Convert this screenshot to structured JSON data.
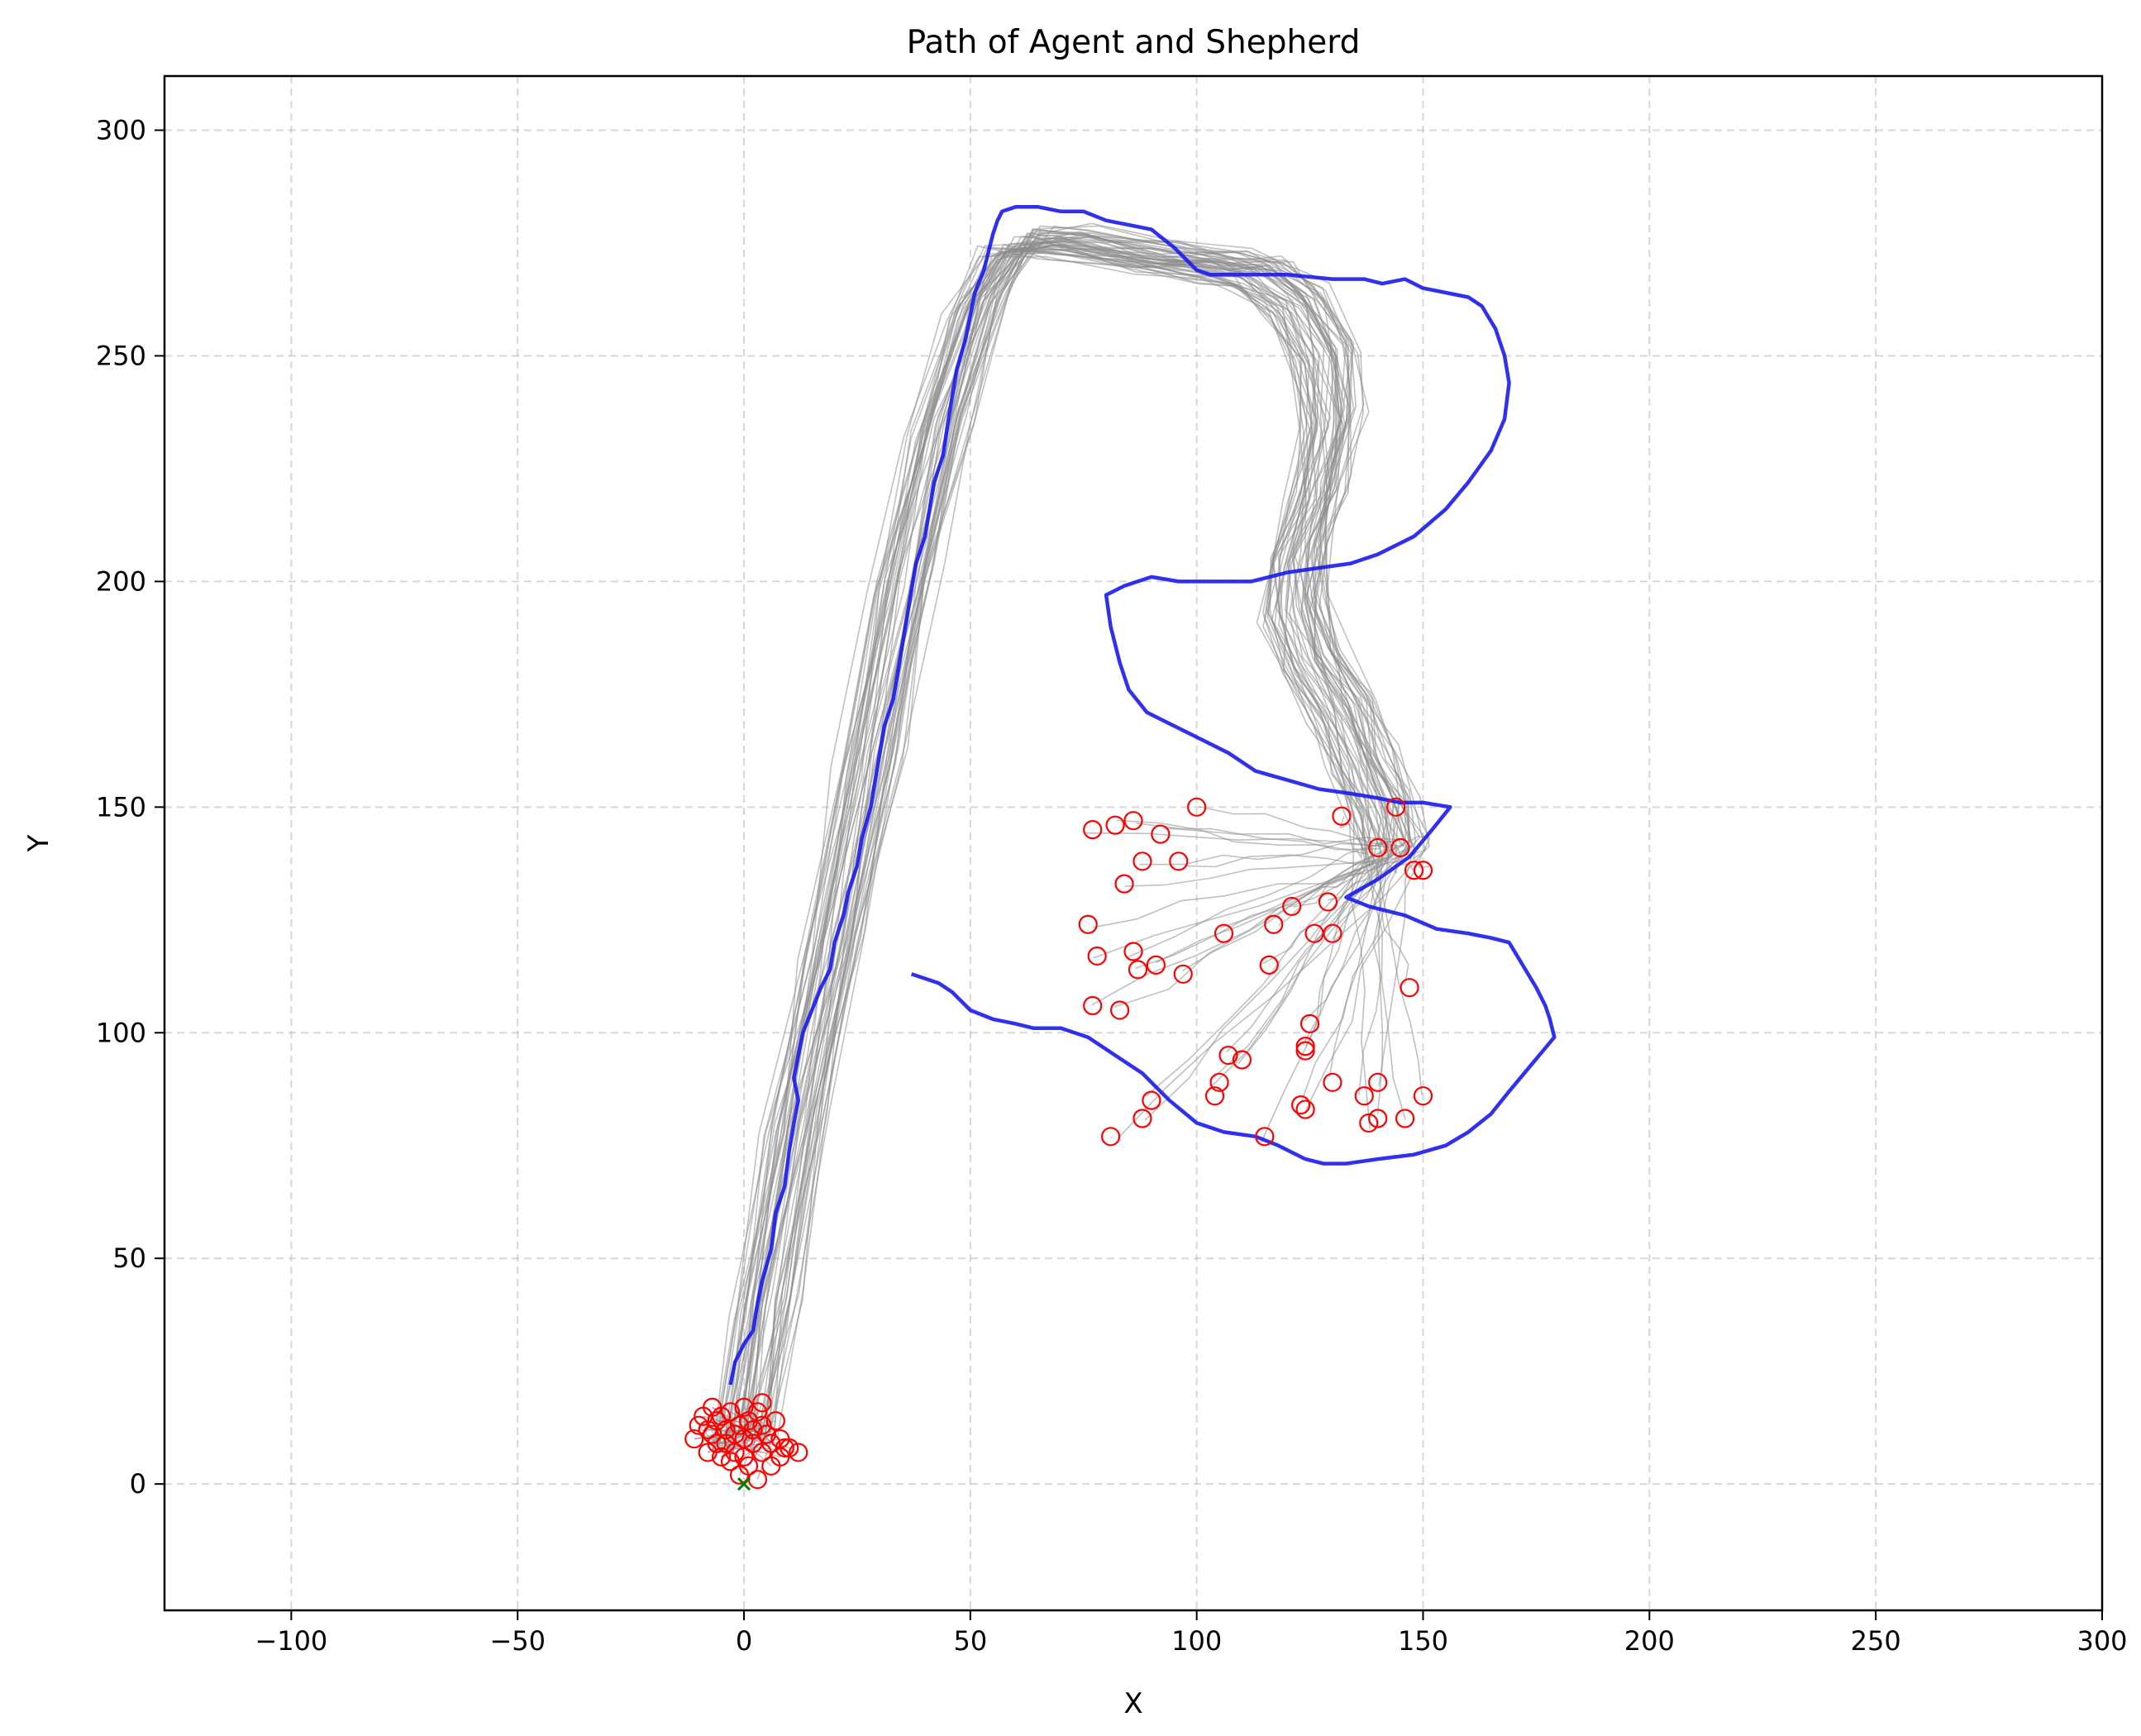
{
  "chart_data": {
    "type": "scatter",
    "title": "Path of Agent and Shepherd",
    "xlabel": "X",
    "ylabel": "Y",
    "xlim": [
      -128,
      300
    ],
    "ylim": [
      -28,
      312
    ],
    "xticks": [
      -100,
      -50,
      0,
      50,
      100,
      150,
      200,
      250,
      300
    ],
    "yticks": [
      0,
      50,
      100,
      150,
      200,
      250,
      300
    ],
    "xtick_labels": [
      "−100",
      "−50",
      "0",
      "50",
      "100",
      "150",
      "200",
      "250",
      "300"
    ],
    "ytick_labels": [
      "0",
      "50",
      "100",
      "150",
      "200",
      "250",
      "300"
    ],
    "grid": true,
    "colors": {
      "shepherd": "#1a1aee",
      "agents": "#8c8c8c",
      "agent_markers": "#ff0000",
      "origin_marker": "#008000"
    },
    "series": [
      {
        "kind": "shepherd_path",
        "points": [
          [
            -3,
            22
          ],
          [
            -2,
            27
          ],
          [
            0,
            31
          ],
          [
            2,
            34
          ],
          [
            3,
            40
          ],
          [
            4,
            45
          ],
          [
            6,
            52
          ],
          [
            7,
            60
          ],
          [
            9,
            66
          ],
          [
            10,
            74
          ],
          [
            11,
            80
          ],
          [
            12,
            85
          ],
          [
            11,
            90
          ],
          [
            12,
            95
          ],
          [
            13,
            100
          ],
          [
            15,
            105
          ],
          [
            17,
            110
          ],
          [
            19,
            114
          ],
          [
            20,
            120
          ],
          [
            22,
            126
          ],
          [
            23,
            131
          ],
          [
            25,
            137
          ],
          [
            26,
            143
          ],
          [
            28,
            150
          ],
          [
            29,
            156
          ],
          [
            30,
            162
          ],
          [
            31,
            168
          ],
          [
            33,
            174
          ],
          [
            34,
            180
          ],
          [
            35,
            186
          ],
          [
            36,
            192
          ],
          [
            37,
            198
          ],
          [
            38,
            204
          ],
          [
            40,
            210
          ],
          [
            41,
            216
          ],
          [
            42,
            222
          ],
          [
            44,
            228
          ],
          [
            45,
            235
          ],
          [
            46,
            241
          ],
          [
            47,
            247
          ],
          [
            49,
            254
          ],
          [
            50,
            259
          ],
          [
            51,
            264
          ],
          [
            53,
            269
          ],
          [
            54,
            273
          ],
          [
            55,
            277
          ],
          [
            56,
            280
          ],
          [
            57,
            282
          ],
          [
            60,
            283
          ],
          [
            65,
            283
          ],
          [
            70,
            282
          ],
          [
            75,
            282
          ],
          [
            80,
            280
          ],
          [
            85,
            279
          ],
          [
            90,
            278
          ],
          [
            95,
            274
          ],
          [
            100,
            269
          ],
          [
            103,
            268
          ],
          [
            110,
            268
          ],
          [
            120,
            268
          ],
          [
            130,
            267
          ],
          [
            137,
            267
          ],
          [
            141,
            266
          ],
          [
            146,
            267
          ],
          [
            150,
            265
          ],
          [
            155,
            264
          ],
          [
            160,
            263
          ],
          [
            163,
            261
          ],
          [
            166,
            256
          ],
          [
            168,
            250
          ],
          [
            169,
            244
          ],
          [
            168,
            236
          ],
          [
            165,
            229
          ],
          [
            160,
            222
          ],
          [
            155,
            216
          ],
          [
            148,
            210
          ],
          [
            140,
            206
          ],
          [
            134,
            204
          ],
          [
            127,
            203
          ],
          [
            120,
            202
          ],
          [
            112,
            200
          ],
          [
            104,
            200
          ],
          [
            96,
            200
          ],
          [
            90,
            201
          ],
          [
            84,
            199
          ],
          [
            80,
            197
          ],
          [
            81,
            190
          ],
          [
            83,
            182
          ],
          [
            85,
            176
          ],
          [
            89,
            171
          ],
          [
            95,
            168
          ],
          [
            101,
            165
          ],
          [
            107,
            162
          ],
          [
            113,
            158
          ],
          [
            120,
            156
          ],
          [
            127,
            154
          ],
          [
            134,
            153
          ],
          [
            140,
            152
          ],
          [
            145,
            151
          ],
          [
            150,
            151
          ],
          [
            156,
            150
          ],
          [
            152,
            145
          ],
          [
            147,
            139
          ],
          [
            140,
            134
          ],
          [
            133,
            130
          ],
          [
            138,
            128
          ],
          [
            146,
            126
          ],
          [
            153,
            123
          ],
          [
            160,
            122
          ],
          [
            165,
            121
          ],
          [
            169,
            120
          ],
          [
            172,
            115
          ],
          [
            175,
            110
          ],
          [
            177,
            106
          ],
          [
            178,
            103
          ],
          [
            179,
            99
          ],
          [
            174,
            93
          ],
          [
            169,
            87
          ],
          [
            165,
            82
          ],
          [
            160,
            78
          ],
          [
            155,
            75
          ],
          [
            148,
            73
          ],
          [
            140,
            72
          ],
          [
            133,
            71
          ],
          [
            128,
            71
          ],
          [
            124,
            72
          ],
          [
            118,
            75
          ],
          [
            113,
            77
          ],
          [
            106,
            78
          ],
          [
            100,
            80
          ],
          [
            94,
            85
          ],
          [
            88,
            91
          ],
          [
            82,
            95
          ],
          [
            76,
            99
          ],
          [
            70,
            101
          ],
          [
            64,
            101
          ],
          [
            60,
            102
          ],
          [
            55,
            103
          ],
          [
            50,
            105
          ],
          [
            46,
            109
          ],
          [
            43,
            111
          ],
          [
            40,
            112
          ],
          [
            37,
            113
          ]
        ]
      },
      {
        "kind": "agent_start_positions",
        "marker": "open-circle",
        "points": [
          [
            -11,
            10
          ],
          [
            -10,
            13
          ],
          [
            -9,
            15
          ],
          [
            -8,
            12
          ],
          [
            -8,
            7
          ],
          [
            -7,
            17
          ],
          [
            -7,
            11
          ],
          [
            -6,
            9
          ],
          [
            -5,
            15
          ],
          [
            -5,
            6
          ],
          [
            -4,
            12
          ],
          [
            -4,
            9
          ],
          [
            -3,
            16
          ],
          [
            -3,
            5
          ],
          [
            -2,
            11
          ],
          [
            -2,
            7
          ],
          [
            -1,
            13
          ],
          [
            -1,
            2
          ],
          [
            0,
            17
          ],
          [
            0,
            10
          ],
          [
            0,
            6
          ],
          [
            1,
            14
          ],
          [
            1,
            4
          ],
          [
            2,
            9
          ],
          [
            2,
            12
          ],
          [
            3,
            16
          ],
          [
            3,
            1
          ],
          [
            4,
            7
          ],
          [
            4,
            13
          ],
          [
            5,
            11
          ],
          [
            6,
            9
          ],
          [
            6,
            4
          ],
          [
            7,
            14
          ],
          [
            8,
            6
          ],
          [
            8,
            10
          ],
          [
            9,
            8
          ],
          [
            10,
            8
          ],
          [
            12,
            7
          ],
          [
            4,
            18
          ],
          [
            -6,
            14
          ]
        ]
      },
      {
        "kind": "agent_end_positions",
        "marker": "open-circle",
        "points": [
          [
            77,
            145
          ],
          [
            82,
            146
          ],
          [
            86,
            147
          ],
          [
            92,
            144
          ],
          [
            100,
            150
          ],
          [
            88,
            138
          ],
          [
            84,
            133
          ],
          [
            96,
            138
          ],
          [
            76,
            124
          ],
          [
            78,
            117
          ],
          [
            86,
            118
          ],
          [
            87,
            114
          ],
          [
            91,
            115
          ],
          [
            97,
            113
          ],
          [
            106,
            122
          ],
          [
            116,
            115
          ],
          [
            117,
            124
          ],
          [
            121,
            128
          ],
          [
            126,
            122
          ],
          [
            130,
            122
          ],
          [
            129,
            129
          ],
          [
            132,
            148
          ],
          [
            140,
            141
          ],
          [
            144,
            150
          ],
          [
            145,
            141
          ],
          [
            148,
            136
          ],
          [
            150,
            136
          ],
          [
            147,
            110
          ],
          [
            77,
            106
          ],
          [
            83,
            105
          ],
          [
            125,
            102
          ],
          [
            124,
            97
          ],
          [
            124,
            96
          ],
          [
            107,
            95
          ],
          [
            110,
            94
          ],
          [
            105,
            89
          ],
          [
            104,
            86
          ],
          [
            90,
            85
          ],
          [
            88,
            81
          ],
          [
            81,
            77
          ],
          [
            115,
            77
          ],
          [
            123,
            84
          ],
          [
            124,
            83
          ],
          [
            130,
            89
          ],
          [
            137,
            86
          ],
          [
            140,
            89
          ],
          [
            150,
            86
          ],
          [
            138,
            80
          ],
          [
            140,
            81
          ],
          [
            146,
            81
          ]
        ]
      },
      {
        "kind": "origin_marker",
        "marker": "x",
        "points": [
          [
            0,
            0
          ]
        ]
      }
    ]
  }
}
